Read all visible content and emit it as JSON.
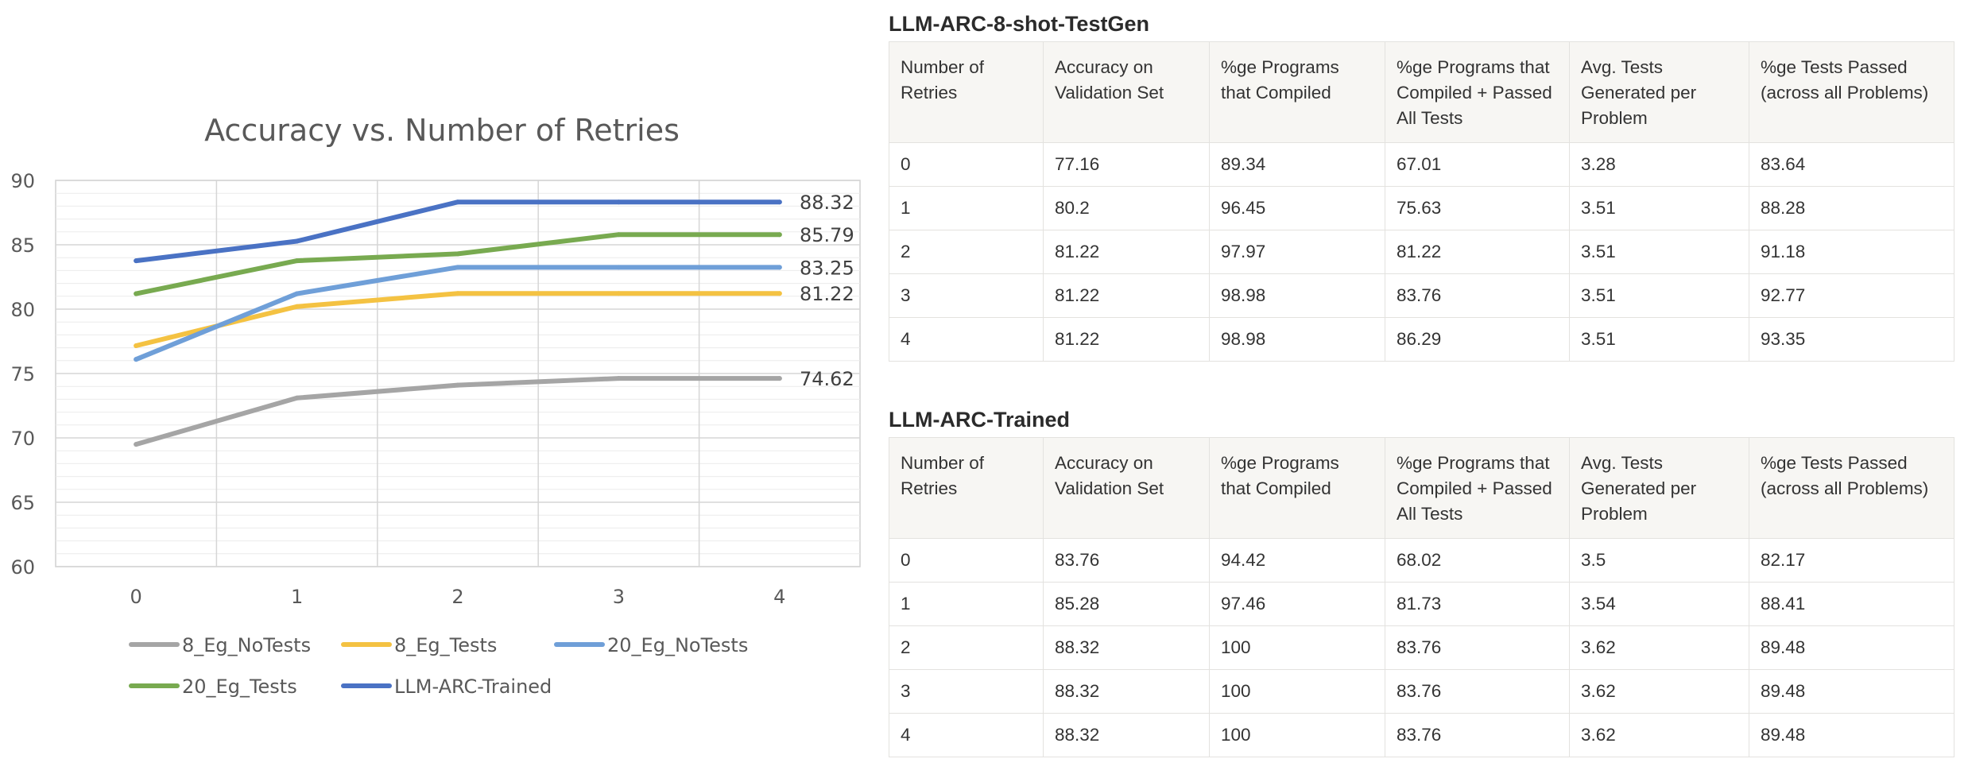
{
  "chart_data": {
    "type": "line",
    "title": "Accuracy vs. Number of Retries",
    "xlabel": "",
    "ylabel": "",
    "categories": [
      "0",
      "1",
      "2",
      "3",
      "4"
    ],
    "ylim": [
      60,
      90
    ],
    "yticks": [
      60,
      65,
      70,
      75,
      80,
      85,
      90
    ],
    "grid": true,
    "legend_position": "bottom",
    "series": [
      {
        "name": "8_Eg_NoTests",
        "color": "#a5a5a5",
        "values": [
          69.5,
          73.1,
          74.1,
          74.62,
          74.62
        ]
      },
      {
        "name": "8_Eg_Tests",
        "color": "#f4c242",
        "values": [
          77.16,
          80.2,
          81.22,
          81.22,
          81.22
        ]
      },
      {
        "name": "20_Eg_NoTests",
        "color": "#6f9fd8",
        "values": [
          76.1,
          81.2,
          83.25,
          83.25,
          83.25
        ]
      },
      {
        "name": "20_Eg_Tests",
        "color": "#78aa50",
        "values": [
          81.2,
          83.76,
          84.3,
          85.79,
          85.79
        ]
      },
      {
        "name": "LLM-ARC-Trained",
        "color": "#4a72c4",
        "values": [
          83.76,
          85.28,
          88.32,
          88.32,
          88.32
        ]
      }
    ],
    "end_labels": [
      "74.62",
      "81.22",
      "83.25",
      "85.79",
      "88.32"
    ]
  },
  "tables": [
    {
      "title": "LLM-ARC-8-shot-TestGen",
      "headers": [
        "Number of Retries",
        "Accuracy on Validation Set",
        "%ge Programs that Compiled",
        "%ge Programs that Compiled + Passed All Tests",
        "Avg. Tests Generated per Problem",
        "%ge Tests Passed (across all Problems)"
      ],
      "rows": [
        [
          "0",
          "77.16",
          "89.34",
          "67.01",
          "3.28",
          "83.64"
        ],
        [
          "1",
          "80.2",
          "96.45",
          "75.63",
          "3.51",
          "88.28"
        ],
        [
          "2",
          "81.22",
          "97.97",
          "81.22",
          "3.51",
          "91.18"
        ],
        [
          "3",
          "81.22",
          "98.98",
          "83.76",
          "3.51",
          "92.77"
        ],
        [
          "4",
          "81.22",
          "98.98",
          "86.29",
          "3.51",
          "93.35"
        ]
      ]
    },
    {
      "title": "LLM-ARC-Trained",
      "headers": [
        "Number of Retries",
        "Accuracy on Validation Set",
        "%ge Programs that Compiled",
        "%ge Programs that Compiled + Passed All Tests",
        "Avg. Tests Generated per Problem",
        "%ge Tests Passed (across all Problems)"
      ],
      "rows": [
        [
          "0",
          "83.76",
          "94.42",
          "68.02",
          "3.5",
          "82.17"
        ],
        [
          "1",
          "85.28",
          "97.46",
          "81.73",
          "3.54",
          "88.41"
        ],
        [
          "2",
          "88.32",
          "100",
          "83.76",
          "3.62",
          "89.48"
        ],
        [
          "3",
          "88.32",
          "100",
          "83.76",
          "3.62",
          "89.48"
        ],
        [
          "4",
          "88.32",
          "100",
          "83.76",
          "3.62",
          "89.48"
        ]
      ]
    }
  ]
}
